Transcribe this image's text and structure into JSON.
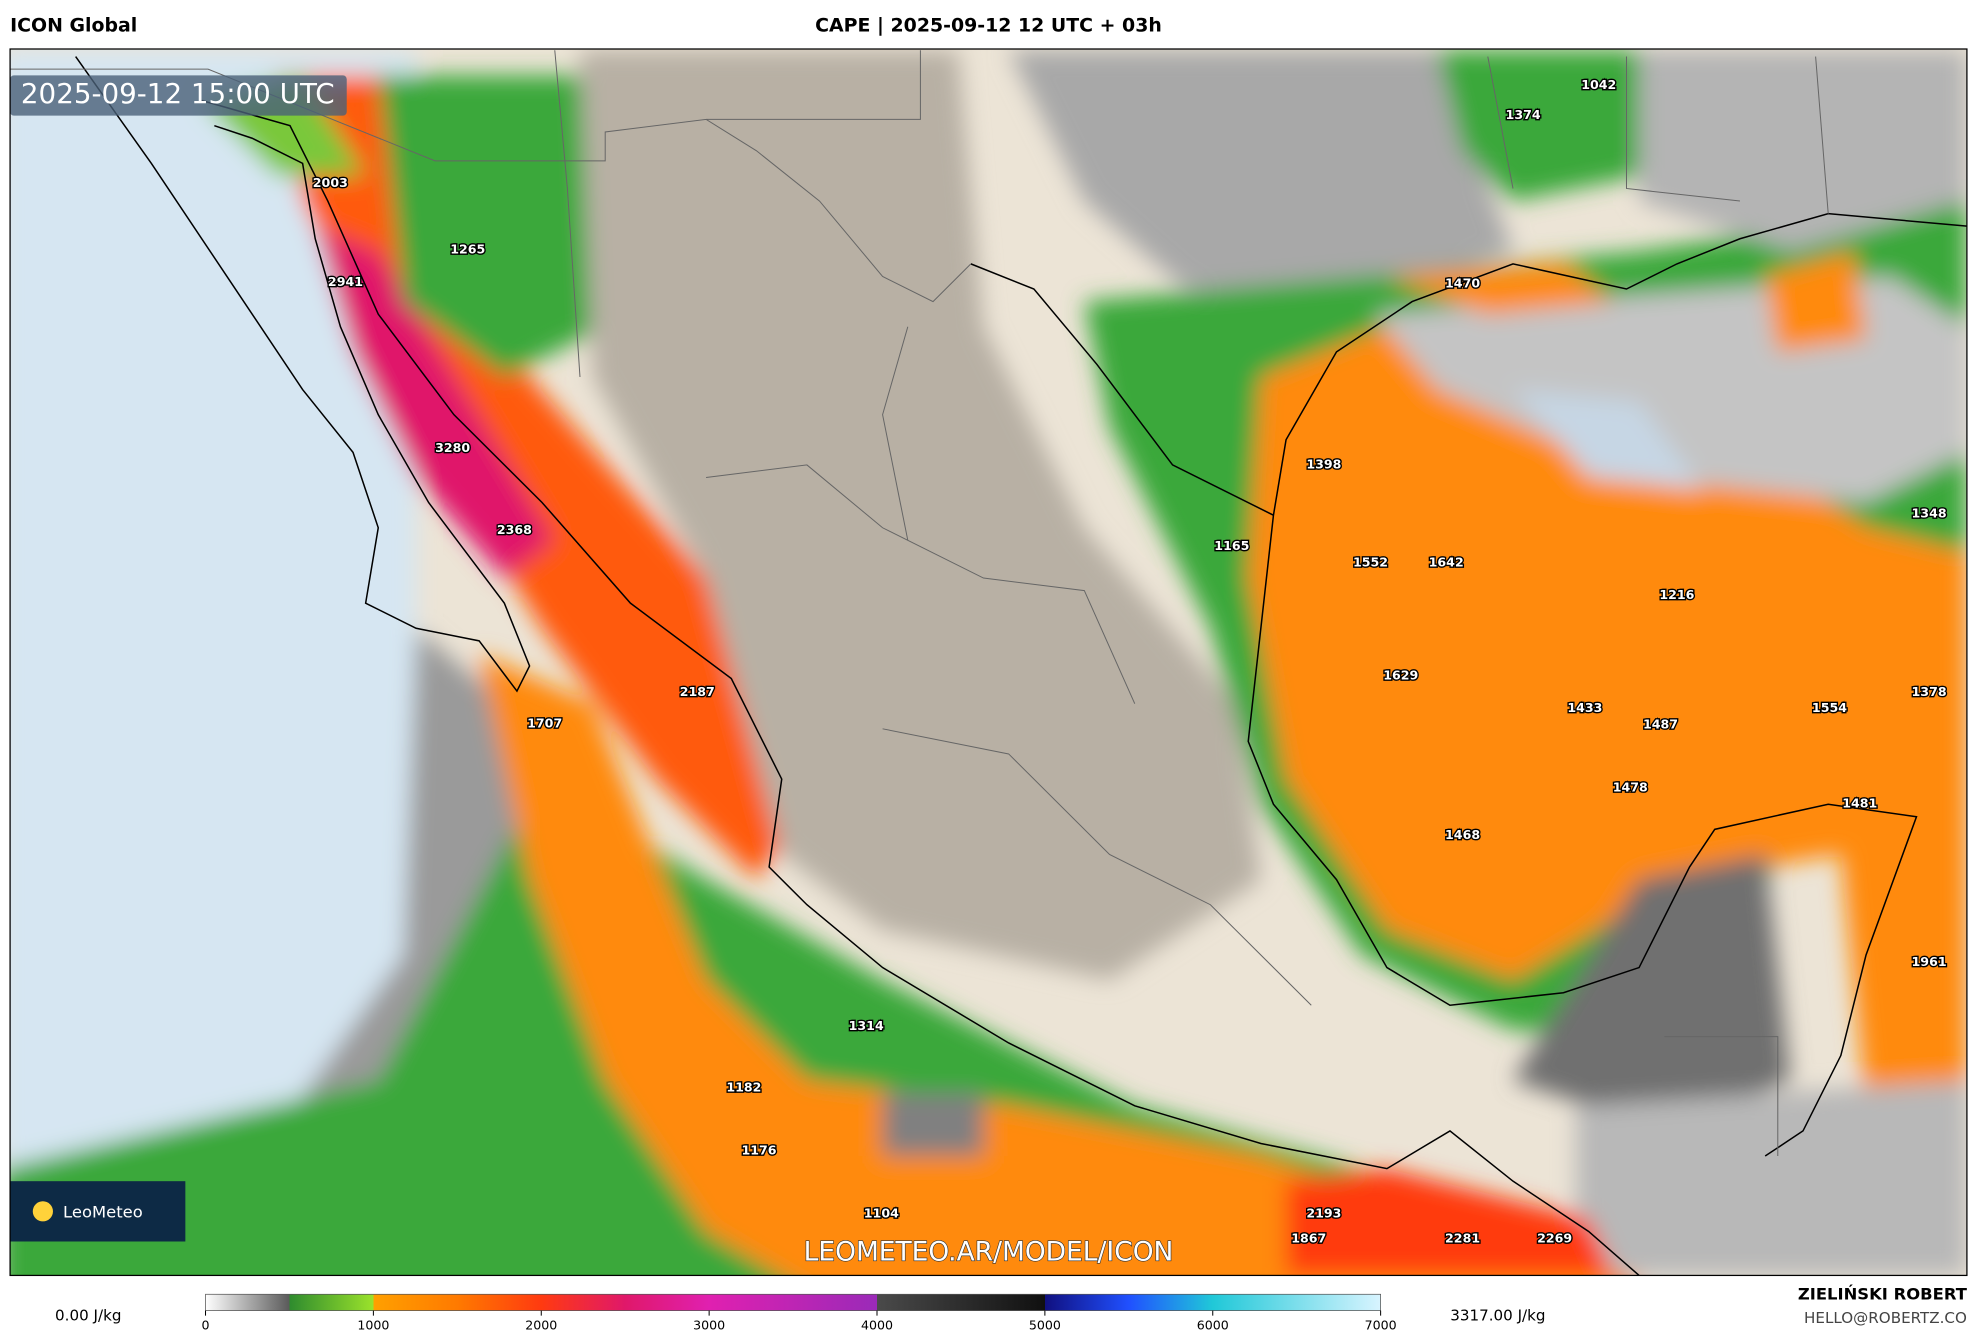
{
  "header": {
    "left": "ICON Global",
    "title": "CAPE | 2025-09-12 12 UTC + 03h"
  },
  "map": {
    "timestamp": "2025-09-12 15:00 UTC",
    "watermark": "LEOMETEO.AR/MODEL/ICON",
    "logo": "LeoMeteo",
    "points": [
      1042,
      1374,
      2003,
      1265,
      2941,
      1470,
      3280,
      1398,
      1348,
      2368,
      1165,
      1552,
      1642,
      1216,
      1629,
      2187,
      1378,
      1433,
      1487,
      1554,
      1707,
      1478,
      1481,
      1468,
      1961,
      1314,
      1182,
      1176,
      1104,
      2193,
      1867,
      2281,
      2269
    ]
  },
  "colorbar": {
    "lim": [
      0,
      7000
    ],
    "ticks": [
      0,
      1000,
      2000,
      3000,
      4000,
      5000,
      6000,
      7000
    ],
    "stops": [
      {
        "value": 0,
        "color": "#ffffff"
      },
      {
        "value": 500,
        "color": "#5a5a5a"
      },
      {
        "value": 500,
        "color": "#2e8b2e"
      },
      {
        "value": 1000,
        "color": "#9be22b"
      },
      {
        "value": 1000,
        "color": "#ffa000"
      },
      {
        "value": 1500,
        "color": "#ff7a00"
      },
      {
        "value": 2000,
        "color": "#ff3a10"
      },
      {
        "value": 2500,
        "color": "#e0186a"
      },
      {
        "value": 3000,
        "color": "#e020b0"
      },
      {
        "value": 4000,
        "color": "#9a2ab8"
      },
      {
        "value": 4000,
        "color": "#4a4a4a"
      },
      {
        "value": 5000,
        "color": "#101010"
      },
      {
        "value": 5000,
        "color": "#101080"
      },
      {
        "value": 5500,
        "color": "#2050ff"
      },
      {
        "value": 6000,
        "color": "#20c8d8"
      },
      {
        "value": 7000,
        "color": "#d8f4ff"
      }
    ]
  },
  "footer": {
    "min": "0.00 J/kg",
    "max": "3317.00 J/kg",
    "author": "ZIELIŃSKI ROBERT",
    "email": "HELLO@ROBERTZ.CO"
  }
}
